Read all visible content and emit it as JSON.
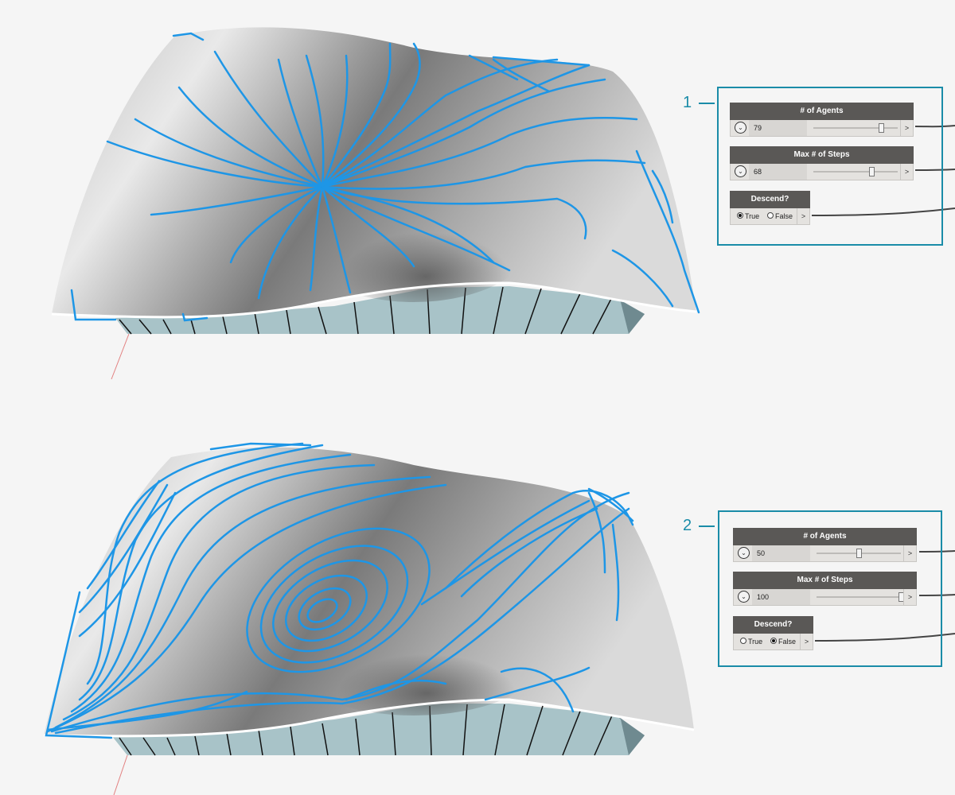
{
  "callouts": [
    {
      "number": "1",
      "agents": {
        "title": "# of Agents",
        "value": "79",
        "fraction": 0.84
      },
      "steps": {
        "title": "Max # of Steps",
        "value": "68",
        "fraction": 0.72
      },
      "descend": {
        "title": "Descend?",
        "true_label": "True",
        "false_label": "False",
        "selected": "True"
      },
      "output_arrow": ">"
    },
    {
      "number": "2",
      "agents": {
        "title": "# of Agents",
        "value": "50",
        "fraction": 0.5
      },
      "steps": {
        "title": "Max # of Steps",
        "value": "100",
        "fraction": 1.0
      },
      "descend": {
        "title": "Descend?",
        "true_label": "True",
        "false_label": "False",
        "selected": "False"
      },
      "output_arrow": ">"
    }
  ],
  "colors": {
    "accent": "#1a8ca8",
    "streamline": "#1e96e6",
    "node_header": "#5a5856",
    "node_body": "#e4e2df",
    "surface_side": "#a8c3c8",
    "wire": "#444444"
  },
  "icons": [
    "chevron-down-icon",
    "radio-button-icon"
  ]
}
